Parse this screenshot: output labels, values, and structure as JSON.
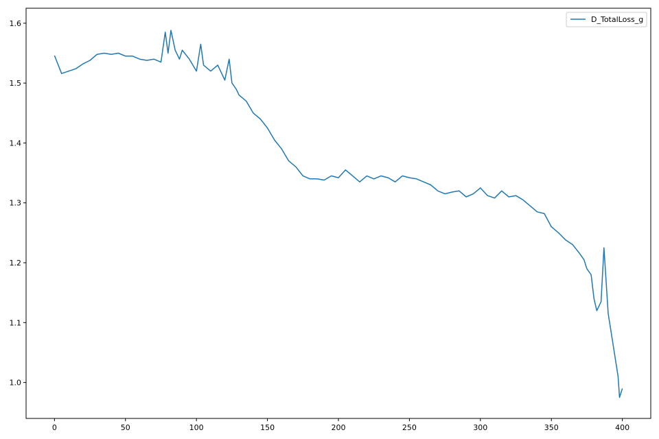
{
  "chart_data": {
    "type": "line",
    "title": "",
    "xlabel": "",
    "ylabel": "",
    "xlim": [
      -20,
      420
    ],
    "ylim": [
      0.94,
      1.625
    ],
    "x_ticks": [
      0,
      50,
      100,
      150,
      200,
      250,
      300,
      350,
      400
    ],
    "y_ticks": [
      1.0,
      1.1,
      1.2,
      1.3,
      1.4,
      1.5,
      1.6
    ],
    "grid": false,
    "legend_position": "top-right",
    "series": [
      {
        "name": "D_TotalLoss_g",
        "color": "#1f77b4",
        "x": [
          0,
          5,
          10,
          15,
          20,
          25,
          30,
          35,
          40,
          45,
          50,
          55,
          60,
          65,
          70,
          75,
          78,
          80,
          82,
          85,
          88,
          90,
          95,
          100,
          103,
          105,
          110,
          115,
          120,
          123,
          125,
          128,
          130,
          135,
          140,
          145,
          150,
          155,
          160,
          165,
          170,
          175,
          180,
          185,
          190,
          195,
          200,
          205,
          210,
          215,
          220,
          225,
          230,
          235,
          240,
          245,
          250,
          255,
          260,
          265,
          270,
          275,
          280,
          285,
          290,
          295,
          300,
          305,
          310,
          315,
          320,
          325,
          330,
          335,
          340,
          345,
          350,
          355,
          360,
          365,
          370,
          373,
          375,
          378,
          380,
          382,
          385,
          387,
          390,
          393,
          395,
          397,
          398,
          400
        ],
        "y": [
          1.546,
          1.516,
          1.52,
          1.524,
          1.532,
          1.538,
          1.548,
          1.55,
          1.548,
          1.55,
          1.545,
          1.545,
          1.54,
          1.538,
          1.54,
          1.535,
          1.585,
          1.55,
          1.588,
          1.555,
          1.54,
          1.555,
          1.54,
          1.52,
          1.565,
          1.53,
          1.52,
          1.53,
          1.505,
          1.54,
          1.5,
          1.49,
          1.48,
          1.47,
          1.45,
          1.44,
          1.425,
          1.405,
          1.39,
          1.37,
          1.36,
          1.345,
          1.34,
          1.34,
          1.338,
          1.345,
          1.342,
          1.355,
          1.345,
          1.335,
          1.345,
          1.34,
          1.345,
          1.342,
          1.335,
          1.345,
          1.342,
          1.34,
          1.335,
          1.33,
          1.32,
          1.315,
          1.318,
          1.32,
          1.31,
          1.315,
          1.325,
          1.312,
          1.308,
          1.32,
          1.31,
          1.312,
          1.305,
          1.295,
          1.285,
          1.282,
          1.26,
          1.25,
          1.238,
          1.23,
          1.215,
          1.205,
          1.19,
          1.18,
          1.14,
          1.12,
          1.135,
          1.225,
          1.115,
          1.07,
          1.04,
          1.01,
          0.975,
          0.99
        ]
      }
    ]
  }
}
